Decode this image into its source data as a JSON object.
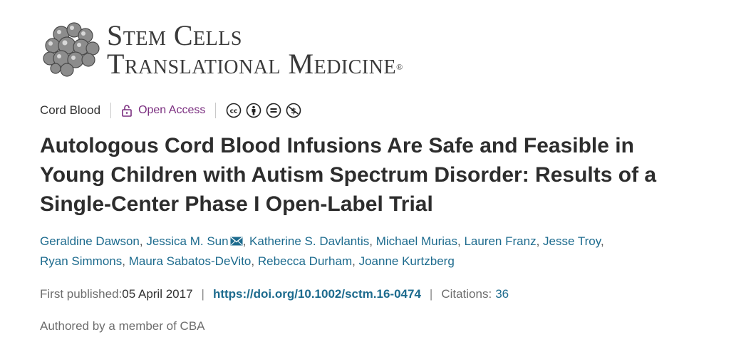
{
  "journal": {
    "line1": "Stem Cells",
    "line2": "Translational Medicine",
    "registered": "®"
  },
  "meta": {
    "category": "Cord Blood",
    "open_access": "Open Access",
    "license_icons": [
      "cc-icon",
      "by-icon",
      "nd-icon",
      "nc-icon"
    ]
  },
  "article": {
    "title": "Autologous Cord Blood Infusions Are Safe and Feasible in Young Children with Autism Spectrum Disorder: Results of a Single-Center Phase I Open-Label Trial"
  },
  "authors": [
    "Geraldine Dawson",
    "Jessica M. Sun",
    "Katherine S. Davlantis",
    "Michael Murias",
    "Lauren Franz",
    "Jesse Troy",
    "Ryan Simmons",
    "Maura Sabatos-DeVito",
    "Rebecca Durham",
    "Joanne Kurtzberg"
  ],
  "publication": {
    "first_published_label": "First published:",
    "date": "05 April 2017",
    "doi": "https://doi.org/10.1002/sctm.16-0474",
    "citations_label": "Citations:",
    "citations_count": "36"
  },
  "authored_note": "Authored by a member of CBA",
  "colors": {
    "link": "#1d6b8e",
    "open_access": "#7a2d7f"
  }
}
